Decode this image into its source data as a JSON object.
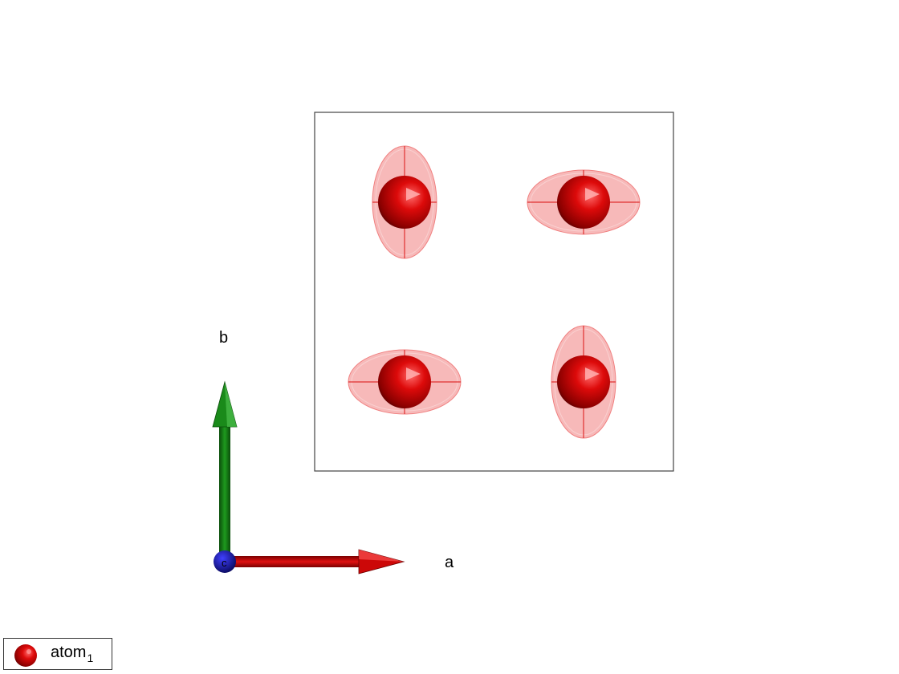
{
  "axes": {
    "a_label": "a",
    "b_label": "b",
    "c_label": "c",
    "a_color": "#d40000",
    "b_color": "#0a7a0a",
    "c_color": "#1010d0"
  },
  "unit_cell": {
    "atoms": [
      {
        "id": "atom-top-left",
        "elongation": "vertical"
      },
      {
        "id": "atom-top-right",
        "elongation": "horizontal"
      },
      {
        "id": "atom-bottom-left",
        "elongation": "horizontal"
      },
      {
        "id": "atom-bottom-right",
        "elongation": "vertical"
      }
    ],
    "atom_color": "#cc0000",
    "ellipsoid_color": "#f08080"
  },
  "legend": {
    "label": "atom",
    "subscript": "1"
  }
}
